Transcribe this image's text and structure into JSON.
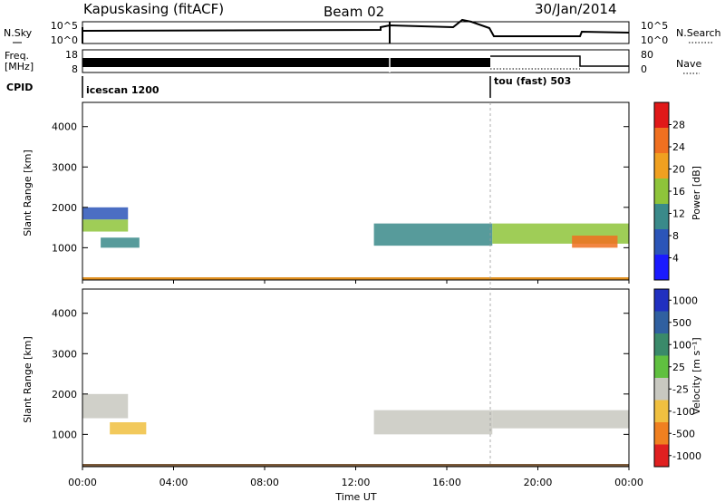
{
  "header": {
    "station": "Kapuskasing (fitACF)",
    "beam": "Beam 02",
    "date": "30/Jan/2014"
  },
  "strips": {
    "nsky_label": "N.Sky",
    "nsearch_label": "N.Search",
    "noise_ticks": [
      "10^5",
      "10^0"
    ],
    "freq_label_1": "Freq.",
    "freq_label_2": "[MHz]",
    "freq_ticks": [
      "18",
      "8"
    ],
    "nave_label": "Nave",
    "nave_ticks": [
      "80",
      "0"
    ],
    "cpid_label": "CPID",
    "cpid_segments": [
      {
        "name": "icescan 1200",
        "start_hour": 0.0,
        "end_hour": 18.0
      },
      {
        "name": "tou (fast) 503",
        "start_hour": 18.0,
        "end_hour": 24.0
      }
    ]
  },
  "panels": {
    "ylabel": "Slant Range [km]",
    "xlabel": "Time UT",
    "power_colorbar_label": "Power [dB]",
    "velocity_colorbar_label": "Velocity  [m s⁻¹]"
  },
  "chart_data": [
    {
      "type": "heatmap",
      "name": "power",
      "x_unit": "hours UT",
      "xlim": [
        0,
        24
      ],
      "x_ticks": [
        "00:00",
        "04:00",
        "08:00",
        "12:00",
        "16:00",
        "20:00",
        "00:00"
      ],
      "ylim": [
        200,
        4600
      ],
      "y_ticks": [
        1000,
        2000,
        3000,
        4000
      ],
      "colorbar": {
        "ticks": [
          "4",
          "8",
          "12",
          "16",
          "20",
          "24",
          "28"
        ],
        "colors": [
          "#1a1aff",
          "#2b55b8",
          "#3a8a8a",
          "#8ec43a",
          "#f0a020",
          "#f07020",
          "#e01818"
        ]
      },
      "regions": [
        {
          "t0": 0.0,
          "t1": 2.0,
          "r0": 1400,
          "r1": 1700,
          "value": 14
        },
        {
          "t0": 0.0,
          "t1": 2.0,
          "r0": 1700,
          "r1": 2000,
          "value": 6
        },
        {
          "t0": 0.8,
          "t1": 2.5,
          "r0": 1000,
          "r1": 1250,
          "value": 12
        },
        {
          "t0": 12.8,
          "t1": 18.0,
          "r0": 1050,
          "r1": 1600,
          "value": 10
        },
        {
          "t0": 18.0,
          "t1": 24.0,
          "r0": 1100,
          "r1": 1600,
          "value": 14
        },
        {
          "t0": 21.5,
          "t1": 23.5,
          "r0": 1000,
          "r1": 1300,
          "value": 24
        }
      ]
    },
    {
      "type": "heatmap",
      "name": "velocity",
      "x_unit": "hours UT",
      "xlim": [
        0,
        24
      ],
      "x_ticks": [
        "00:00",
        "04:00",
        "08:00",
        "12:00",
        "16:00",
        "20:00",
        "00:00"
      ],
      "ylim": [
        200,
        4600
      ],
      "y_ticks": [
        1000,
        2000,
        3000,
        4000
      ],
      "colorbar": {
        "ticks": [
          "1000",
          "500",
          "100",
          "25",
          "-25",
          "-100",
          "-500",
          "-1000"
        ],
        "colors": [
          "#2030c0",
          "#3060a0",
          "#3a8a6a",
          "#60c040",
          "#c8c8c0",
          "#f0c040",
          "#f08020",
          "#e02020"
        ]
      },
      "regions": [
        {
          "t0": 0.0,
          "t1": 2.0,
          "r0": 1400,
          "r1": 2000,
          "value": 0
        },
        {
          "t0": 1.2,
          "t1": 2.8,
          "r0": 1000,
          "r1": 1300,
          "value": -100
        },
        {
          "t0": 12.8,
          "t1": 18.0,
          "r0": 1000,
          "r1": 1600,
          "value": 0
        },
        {
          "t0": 18.0,
          "t1": 24.0,
          "r0": 1150,
          "r1": 1600,
          "value": 0
        }
      ]
    }
  ]
}
